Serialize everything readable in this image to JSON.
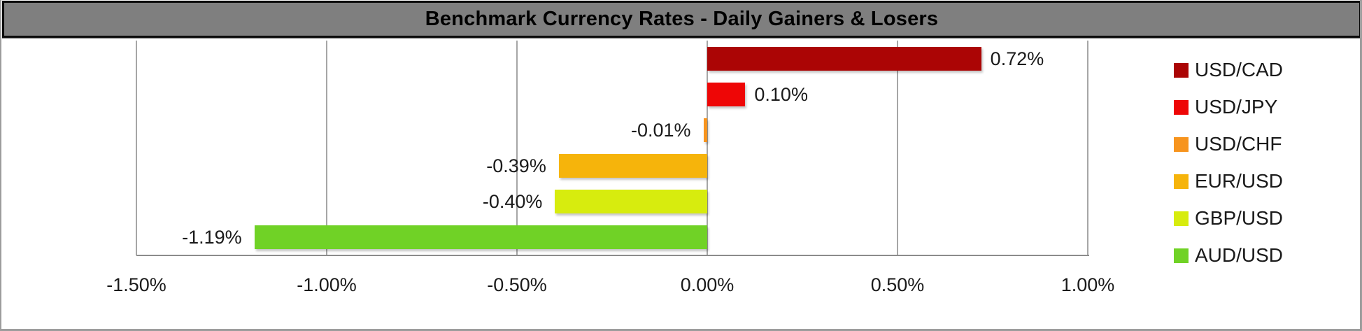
{
  "title": "Benchmark Currency Rates - Daily Gainers & Losers",
  "colors": {
    "title_bar_bg": "#7f7f7f",
    "title_border": "#0a0a0a",
    "title_text": "#000000",
    "frame_border": "#9d9d9d",
    "gridline": "#a6a6a6",
    "axis_line": "#8c8c8c",
    "label_text": "#1a1a1a",
    "plot_bg": "#ffffff"
  },
  "chart_data": {
    "type": "bar",
    "orientation": "horizontal",
    "title": "Benchmark Currency Rates - Daily Gainers & Losers",
    "categories": [
      "USD/CAD",
      "USD/JPY",
      "USD/CHF",
      "EUR/USD",
      "GBP/USD",
      "AUD/USD"
    ],
    "values": [
      0.72,
      0.1,
      -0.01,
      -0.39,
      -0.4,
      -1.19
    ],
    "value_labels": [
      "0.72%",
      "0.10%",
      "-0.01%",
      "-0.39%",
      "-0.40%",
      "-1.19%"
    ],
    "bar_colors": [
      "#ab0505",
      "#ee0606",
      "#f7941e",
      "#f6b40b",
      "#d7ec0e",
      "#70d226"
    ],
    "xlim": [
      -1.5,
      1.0
    ],
    "x_ticks": [
      -1.5,
      -1.0,
      -0.5,
      0.0,
      0.5,
      1.0
    ],
    "x_tick_labels": [
      "-1.50%",
      "-1.00%",
      "-0.50%",
      "0.00%",
      "0.50%",
      "1.00%"
    ],
    "grid": "vertical-on",
    "legend_position": "right",
    "legend": [
      {
        "label": "USD/CAD",
        "color": "#ab0505"
      },
      {
        "label": "USD/JPY",
        "color": "#ee0606"
      },
      {
        "label": "USD/CHF",
        "color": "#f7941e"
      },
      {
        "label": "EUR/USD",
        "color": "#f6b40b"
      },
      {
        "label": "GBP/USD",
        "color": "#d7ec0e"
      },
      {
        "label": "AUD/USD",
        "color": "#70d226"
      }
    ]
  }
}
